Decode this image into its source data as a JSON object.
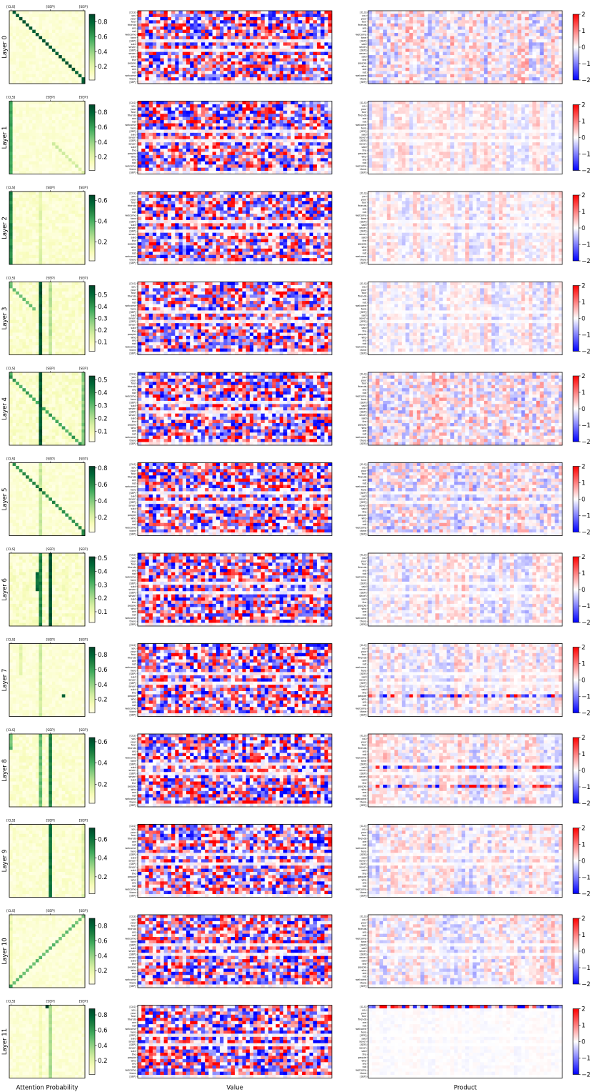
{
  "chart_data": {
    "type": "heatmap",
    "layout": "12 rows x 3 panels (attention probability, value, product)",
    "layers": [
      "Layer 0",
      "Layer 1",
      "Layer 2",
      "Layer 3",
      "Layer 4",
      "Layer 5",
      "Layer 6",
      "Layer 7",
      "Layer 8",
      "Layer 9",
      "Layer 10",
      "Layer 11"
    ],
    "column_labels": {
      "attention": "Attention Probability",
      "value": "Value",
      "product": "Product"
    },
    "attention_top_ticks": [
      "[CLS]",
      "[SEP]",
      "[SEP]"
    ],
    "tokens": [
      "[CLS]",
      "you",
      "your",
      "four",
      "friends",
      "are",
      "not",
      "welcome",
      "here",
      "[SEP]",
      "said",
      "seven",
      "[SEP]",
      "seven",
      "said",
      "the",
      "people",
      "who",
      "are",
      "not",
      "welcome",
      "there",
      "[SEP]"
    ],
    "attention_colorbars": [
      {
        "max": 0.9,
        "ticks": [
          "0.2",
          "0.4",
          "0.6",
          "0.8"
        ]
      },
      {
        "max": 0.9,
        "ticks": [
          "0.2",
          "0.4",
          "0.6",
          "0.8"
        ]
      },
      {
        "max": 0.65,
        "ticks": [
          "0.2",
          "0.4",
          "0.6"
        ]
      },
      {
        "max": 0.58,
        "ticks": [
          "0.1",
          "0.2",
          "0.3",
          "0.4",
          "0.5"
        ]
      },
      {
        "max": 0.53,
        "ticks": [
          "0.1",
          "0.2",
          "0.3",
          "0.4",
          "0.5"
        ]
      },
      {
        "max": 0.82,
        "ticks": [
          "0.2",
          "0.4",
          "0.6",
          "0.8"
        ]
      },
      {
        "max": 0.51,
        "ticks": [
          "0.1",
          "0.2",
          "0.3",
          "0.4",
          "0.5"
        ]
      },
      {
        "max": 0.9,
        "ticks": [
          "0.2",
          "0.4",
          "0.6",
          "0.8"
        ]
      },
      {
        "max": 0.64,
        "ticks": [
          "0.2",
          "0.4",
          "0.6"
        ]
      },
      {
        "max": 0.72,
        "ticks": [
          "0.2",
          "0.4",
          "0.6"
        ]
      },
      {
        "max": 0.9,
        "ticks": [
          "0.2",
          "0.4",
          "0.6",
          "0.8"
        ]
      },
      {
        "max": 0.88,
        "ticks": [
          "0.2",
          "0.4",
          "0.6",
          "0.8"
        ]
      }
    ],
    "product_colorbar": {
      "min": -2,
      "max": 2,
      "ticks": [
        "2",
        "1",
        "0",
        "−1",
        "−2"
      ]
    },
    "attention_colormap": [
      "#ffffe5",
      "#f7fcb9",
      "#d9f0a3",
      "#addd8e",
      "#78c679",
      "#41ab5d",
      "#238443",
      "#006837",
      "#004529"
    ],
    "diverging_colormap": [
      "#0000ff",
      "#ffffff",
      "#ff0000"
    ]
  }
}
